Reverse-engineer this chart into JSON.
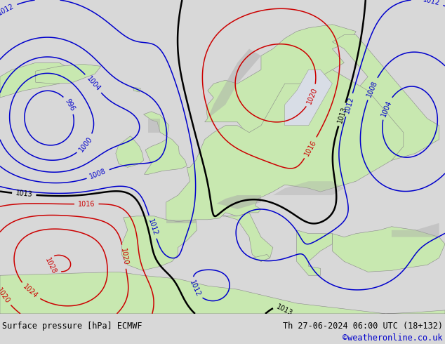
{
  "title_left": "Surface pressure [hPa] ECMWF",
  "title_right": "Th 27-06-2024 06:00 UTC (18+132)",
  "credit": "©weatheronline.co.uk",
  "bg_map": "#d8dde6",
  "land_color": "#c8e8b0",
  "mountain_color": "#a8a8a8",
  "bottom_bar_color": "#d8d8d8",
  "contour_black": "#000000",
  "contour_blue": "#0000cc",
  "contour_red": "#cc0000",
  "credit_color": "#0000cc",
  "label_fs": 7,
  "bar_fs": 8.5
}
